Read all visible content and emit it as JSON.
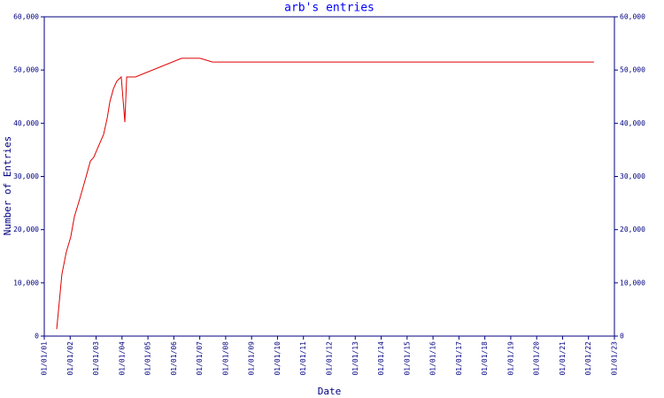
{
  "chart_data": {
    "type": "line",
    "title": "arb's entries",
    "x_label": "Date",
    "y_label": "Number of Entries",
    "x": [
      2001.48,
      2001.68,
      2001.85,
      2002.02,
      2002.16,
      2002.37,
      2002.61,
      2002.78,
      2002.91,
      2003.05,
      2003.29,
      2003.43,
      2003.53,
      2003.67,
      2003.8,
      2003.97,
      2004.11,
      2004.18,
      2004.52,
      2006.3,
      2007.01,
      2007.49,
      2022.21
    ],
    "series": [
      {
        "color": "#e00000",
        "values": [
          1300,
          11600,
          15800,
          18600,
          22400,
          25800,
          29900,
          32900,
          33600,
          35200,
          37900,
          41000,
          44000,
          46500,
          47900,
          48700,
          40200,
          48700,
          48700,
          52200,
          52200,
          51500,
          51500
        ]
      }
    ],
    "xlim": [
      2001,
      2023
    ],
    "xticks": [
      {
        "value": 2001,
        "label": "01/01/01"
      },
      {
        "value": 2002,
        "label": "01/01/02"
      },
      {
        "value": 2003,
        "label": "01/01/03"
      },
      {
        "value": 2004,
        "label": "01/01/04"
      },
      {
        "value": 2005,
        "label": "01/01/05"
      },
      {
        "value": 2006,
        "label": "01/01/06"
      },
      {
        "value": 2007,
        "label": "01/01/07"
      },
      {
        "value": 2008,
        "label": "01/01/08"
      },
      {
        "value": 2009,
        "label": "01/01/09"
      },
      {
        "value": 2010,
        "label": "01/01/10"
      },
      {
        "value": 2011,
        "label": "01/01/11"
      },
      {
        "value": 2012,
        "label": "01/01/12"
      },
      {
        "value": 2013,
        "label": "01/01/13"
      },
      {
        "value": 2014,
        "label": "01/01/14"
      },
      {
        "value": 2015,
        "label": "01/01/15"
      },
      {
        "value": 2016,
        "label": "01/01/16"
      },
      {
        "value": 2017,
        "label": "01/01/17"
      },
      {
        "value": 2018,
        "label": "01/01/18"
      },
      {
        "value": 2019,
        "label": "01/01/19"
      },
      {
        "value": 2020,
        "label": "01/01/20"
      },
      {
        "value": 2021,
        "label": "01/01/21"
      },
      {
        "value": 2022,
        "label": "01/01/22"
      },
      {
        "value": 2023,
        "label": "01/01/23"
      }
    ],
    "ylim": [
      0,
      60000
    ],
    "yticks": [
      0,
      {
        "value": 10000,
        "label": "10,000"
      },
      {
        "value": 20000,
        "label": "20,000"
      },
      {
        "value": 30000,
        "label": "30,000"
      },
      {
        "value": 40000,
        "label": "40,000"
      },
      {
        "value": 50000,
        "label": "50,000"
      },
      {
        "value": 60000,
        "label": "60,000"
      }
    ],
    "axis_color": "#000080",
    "title_color": "#0000ff"
  }
}
